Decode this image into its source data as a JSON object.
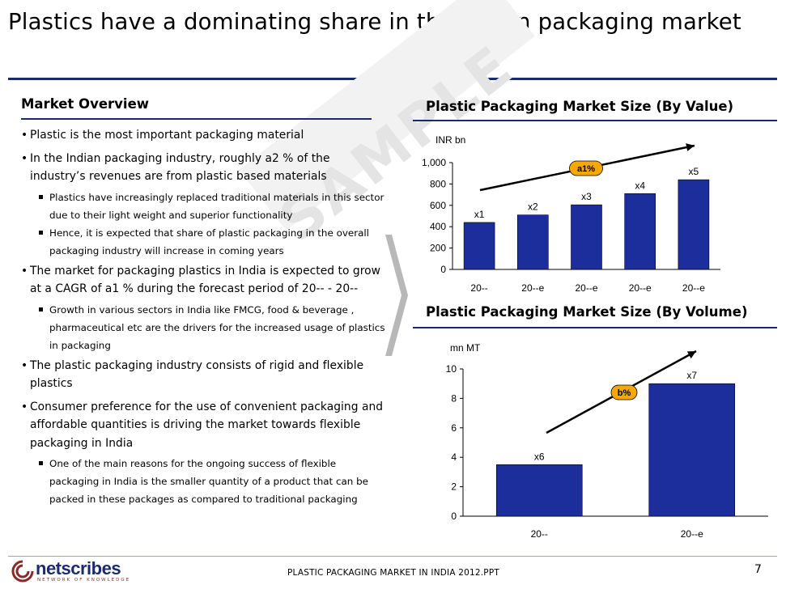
{
  "slide": {
    "title": "Plastics have a dominating share in the Indian packaging market"
  },
  "overview": {
    "heading": "Market Overview",
    "items": [
      {
        "text": "Plastic is the most important packaging material",
        "subs": []
      },
      {
        "text": "In the Indian packaging industry, roughly a2 % of the industry’s revenues are from plastic based materials",
        "subs": [
          "Plastics have increasingly replaced traditional materials in this sector due to their light weight and superior functionality",
          "Hence, it is expected that share of plastic packaging in the overall packaging industry will increase in coming years"
        ]
      },
      {
        "text": "The market for packaging plastics in India is expected to grow at a CAGR of a1 % during the forecast period of 20-- - 20--",
        "subs": [
          "Growth in various sectors in India like FMCG, food & beverage , pharmaceutical etc are the drivers for the increased usage of plastics in packaging"
        ]
      },
      {
        "text": "The plastic packaging industry consists of rigid and flexible plastics",
        "subs": []
      },
      {
        "text": "Consumer preference for the use of convenient packaging and affordable quantities is driving the market towards flexible packaging in India",
        "subs": [
          "One of the main reasons for the ongoing success of flexible packaging in India is the smaller quantity of a product that can be packed in these packages as compared to traditional packaging"
        ]
      }
    ]
  },
  "watermark": "SAMPLE",
  "footer": {
    "text": "PLASTIC PACKAGING MARKET IN INDIA 2012.PPT",
    "page": "7",
    "logo": "netscribes",
    "logo_tag": "NETWORK OF KNOWLEDGE"
  },
  "colors": {
    "bar": "#1c2d9c",
    "accent": "#1a2a6c",
    "badge": "#f5a800"
  },
  "chart_data": [
    {
      "type": "bar",
      "title": "Plastic Packaging Market Size (By Value)",
      "unit": "INR bn",
      "categories": [
        "20--",
        "20--e",
        "20--e",
        "20--e",
        "20--e"
      ],
      "values": [
        440,
        510,
        605,
        710,
        840
      ],
      "data_labels": [
        "x1",
        "x2",
        "x3",
        "x4",
        "x5"
      ],
      "y_ticks": [
        "0",
        "200",
        "400",
        "600",
        "800",
        "1,000"
      ],
      "ylim": [
        0,
        1000
      ],
      "growth_label": "a1%",
      "grid": false
    },
    {
      "type": "bar",
      "title": "Plastic Packaging Market Size (By Volume)",
      "unit": "mn MT",
      "categories": [
        "20--",
        "20--e"
      ],
      "values": [
        3.5,
        9.0
      ],
      "data_labels": [
        "x6",
        "x7"
      ],
      "y_ticks": [
        "0",
        "2",
        "4",
        "6",
        "8",
        "10"
      ],
      "ylim": [
        0,
        10
      ],
      "growth_label": "b%",
      "grid": false
    }
  ]
}
